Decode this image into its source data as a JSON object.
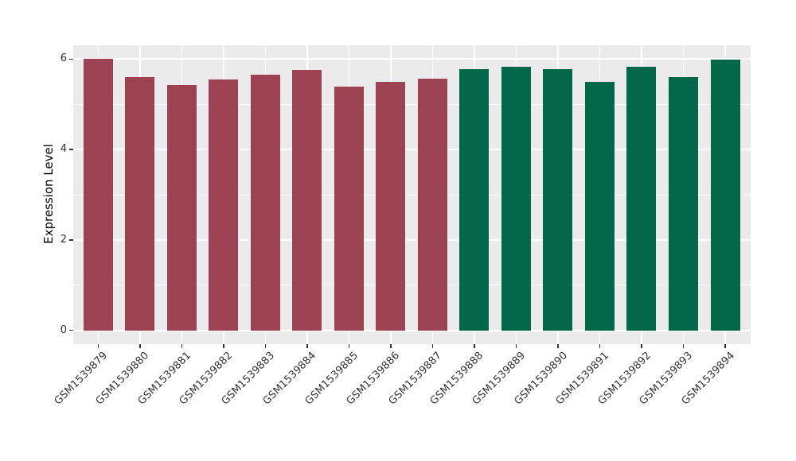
{
  "chart_data": {
    "type": "bar",
    "title": "",
    "xlabel": "",
    "ylabel": "Expression Level",
    "categories": [
      "GSM1539879",
      "GSM1539880",
      "GSM1539881",
      "GSM1539882",
      "GSM1539883",
      "GSM1539884",
      "GSM1539885",
      "GSM1539886",
      "GSM1539887",
      "GSM1539888",
      "GSM1539889",
      "GSM1539890",
      "GSM1539891",
      "GSM1539892",
      "GSM1539893",
      "GSM1539894"
    ],
    "values": [
      6.0,
      5.6,
      5.43,
      5.56,
      5.66,
      5.77,
      5.4,
      5.5,
      5.57,
      5.78,
      5.84,
      5.78,
      5.49,
      5.84,
      5.61,
      5.99
    ],
    "bar_colors": [
      "#9d4252",
      "#9d4252",
      "#9d4252",
      "#9d4252",
      "#9d4252",
      "#9d4252",
      "#9d4252",
      "#9d4252",
      "#9d4252",
      "#036849",
      "#036849",
      "#036849",
      "#036849",
      "#036849",
      "#036849",
      "#036849"
    ],
    "color_groups": [
      {
        "name": "maroon-group",
        "color": "#9d4252",
        "first": "GSM1539879",
        "last": "GSM1539887"
      },
      {
        "name": "green-group",
        "color": "#036849",
        "first": "GSM1539888",
        "last": "GSM1539894"
      }
    ],
    "y_ticks": [
      0,
      2,
      4,
      6
    ],
    "y_tick_labels": [
      "0",
      "2",
      "4",
      "6"
    ],
    "y_minor_gridlines": [
      1,
      3,
      5
    ],
    "ylim": [
      -0.31,
      6.31
    ],
    "grid": true,
    "legend": "none",
    "panel_background": "#ebebeb",
    "gridline_color": "#ffffff",
    "axis_text_color": "#333333",
    "axis_title_color": "#000000",
    "figure_background": "#ffffff"
  }
}
